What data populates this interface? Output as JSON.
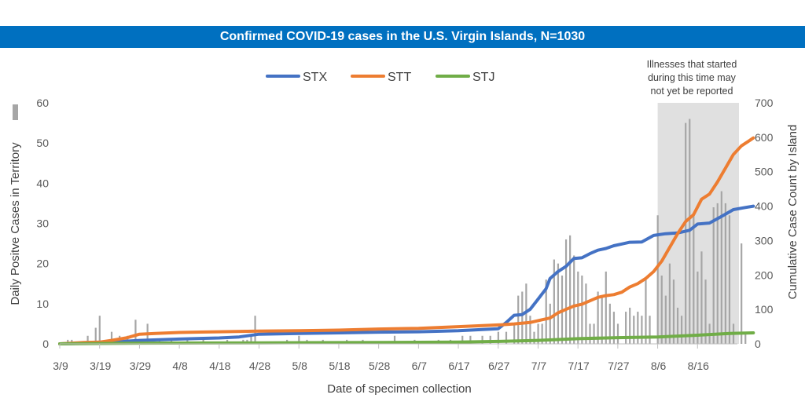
{
  "chart_data": {
    "type": "bar+line",
    "title": "Confirmed COVID-19 cases in the U.S. Virgin Islands, N=1030",
    "xlabel": "Date of specimen collection",
    "ylabel_left": "Daily Positve Cases in Territory",
    "ylabel_right": "Cumulative Case Count by Island",
    "ylim_left": [
      0,
      60
    ],
    "ylim_right": [
      0,
      700
    ],
    "yticks_left": [
      "0",
      "10",
      "20",
      "30",
      "40",
      "50",
      "60"
    ],
    "yticks_right": [
      "0",
      "100",
      "200",
      "300",
      "400",
      "500",
      "600",
      "700"
    ],
    "x_start": "3/9",
    "x_end": "8/26",
    "xticks": [
      "3/9",
      "3/19",
      "3/29",
      "4/8",
      "4/18",
      "4/28",
      "5/8",
      "5/18",
      "5/28",
      "6/7",
      "6/17",
      "6/27",
      "7/7",
      "7/17",
      "7/27",
      "8/6",
      "8/16"
    ],
    "legend_placement": "top-center",
    "annotation": {
      "lines": [
        "Illnesses that started",
        "during this time may",
        "not yet be reported"
      ],
      "shaded_from": "8/6",
      "shaded_to": "8/26"
    },
    "daily_bar_color": "#a6a6a6",
    "daily_cases": [
      [
        "3/11",
        1
      ],
      [
        "3/12",
        1
      ],
      [
        "3/16",
        2
      ],
      [
        "3/18",
        4
      ],
      [
        "3/19",
        7
      ],
      [
        "3/22",
        3
      ],
      [
        "3/24",
        2
      ],
      [
        "3/26",
        2
      ],
      [
        "3/28",
        6
      ],
      [
        "3/31",
        5
      ],
      [
        "4/3",
        1
      ],
      [
        "4/6",
        1
      ],
      [
        "4/10",
        1
      ],
      [
        "4/14",
        1
      ],
      [
        "4/20",
        1
      ],
      [
        "4/24",
        1
      ],
      [
        "4/25",
        1
      ],
      [
        "4/26",
        2
      ],
      [
        "4/27",
        7
      ],
      [
        "5/5",
        1
      ],
      [
        "5/8",
        2
      ],
      [
        "5/10",
        1
      ],
      [
        "5/14",
        1
      ],
      [
        "5/20",
        1
      ],
      [
        "5/24",
        1
      ],
      [
        "6/1",
        2
      ],
      [
        "6/6",
        1
      ],
      [
        "6/12",
        1
      ],
      [
        "6/15",
        1
      ],
      [
        "6/18",
        2
      ],
      [
        "6/20",
        2
      ],
      [
        "6/23",
        2
      ],
      [
        "6/25",
        2
      ],
      [
        "6/27",
        3
      ],
      [
        "6/29",
        3
      ],
      [
        "7/1",
        5
      ],
      [
        "7/2",
        12
      ],
      [
        "7/3",
        13
      ],
      [
        "7/4",
        15
      ],
      [
        "7/5",
        7
      ],
      [
        "7/6",
        3
      ],
      [
        "7/7",
        5
      ],
      [
        "7/8",
        5
      ],
      [
        "7/9",
        16
      ],
      [
        "7/10",
        10
      ],
      [
        "7/11",
        21
      ],
      [
        "7/12",
        20
      ],
      [
        "7/13",
        17
      ],
      [
        "7/14",
        26
      ],
      [
        "7/15",
        27
      ],
      [
        "7/16",
        22
      ],
      [
        "7/17",
        18
      ],
      [
        "7/18",
        17
      ],
      [
        "7/19",
        15
      ],
      [
        "7/20",
        5
      ],
      [
        "7/21",
        5
      ],
      [
        "7/22",
        13
      ],
      [
        "7/23",
        12
      ],
      [
        "7/24",
        18
      ],
      [
        "7/25",
        10
      ],
      [
        "7/26",
        8
      ],
      [
        "7/27",
        5
      ],
      [
        "7/29",
        8
      ],
      [
        "7/30",
        9
      ],
      [
        "7/31",
        7
      ],
      [
        "8/1",
        8
      ],
      [
        "8/2",
        7
      ],
      [
        "8/3",
        16
      ],
      [
        "8/4",
        7
      ],
      [
        "8/6",
        32
      ],
      [
        "8/7",
        17
      ],
      [
        "8/8",
        12
      ],
      [
        "8/9",
        20
      ],
      [
        "8/10",
        16
      ],
      [
        "8/11",
        9
      ],
      [
        "8/12",
        7
      ],
      [
        "8/13",
        55
      ],
      [
        "8/14",
        56
      ],
      [
        "8/15",
        32
      ],
      [
        "8/16",
        18
      ],
      [
        "8/17",
        23
      ],
      [
        "8/18",
        16
      ],
      [
        "8/19",
        5
      ],
      [
        "8/20",
        34
      ],
      [
        "8/21",
        35
      ],
      [
        "8/22",
        38
      ],
      [
        "8/23",
        35
      ],
      [
        "8/24",
        32
      ],
      [
        "8/25",
        5
      ],
      [
        "8/27",
        25
      ],
      [
        "8/28",
        3
      ]
    ],
    "series": [
      {
        "name": "STX",
        "color": "#4472c4",
        "points": [
          [
            "3/9",
            0
          ],
          [
            "3/19",
            3
          ],
          [
            "3/29",
            10
          ],
          [
            "4/8",
            14
          ],
          [
            "4/18",
            17
          ],
          [
            "4/23",
            20
          ],
          [
            "4/28",
            28
          ],
          [
            "5/8",
            30
          ],
          [
            "5/18",
            32
          ],
          [
            "5/28",
            34
          ],
          [
            "6/7",
            35
          ],
          [
            "6/17",
            38
          ],
          [
            "6/27",
            44
          ],
          [
            "6/29",
            62
          ],
          [
            "7/1",
            83
          ],
          [
            "7/3",
            85
          ],
          [
            "7/5",
            100
          ],
          [
            "7/7",
            130
          ],
          [
            "7/9",
            160
          ],
          [
            "7/10",
            190
          ],
          [
            "7/12",
            210
          ],
          [
            "7/14",
            225
          ],
          [
            "7/16",
            248
          ],
          [
            "7/18",
            250
          ],
          [
            "7/20",
            262
          ],
          [
            "7/22",
            272
          ],
          [
            "7/24",
            277
          ],
          [
            "7/26",
            285
          ],
          [
            "7/28",
            290
          ],
          [
            "7/30",
            295
          ],
          [
            "8/2",
            296
          ],
          [
            "8/5",
            315
          ],
          [
            "8/8",
            320
          ],
          [
            "8/11",
            322
          ],
          [
            "8/14",
            330
          ],
          [
            "8/16",
            348
          ],
          [
            "8/19",
            351
          ],
          [
            "8/22",
            370
          ],
          [
            "8/25",
            390
          ],
          [
            "8/28",
            396
          ],
          [
            "8/30",
            400
          ]
        ]
      },
      {
        "name": "STT",
        "color": "#ed7d31",
        "points": [
          [
            "3/9",
            0
          ],
          [
            "3/15",
            4
          ],
          [
            "3/19",
            5
          ],
          [
            "3/22",
            10
          ],
          [
            "3/26",
            18
          ],
          [
            "3/29",
            28
          ],
          [
            "4/2",
            30
          ],
          [
            "4/8",
            33
          ],
          [
            "4/18",
            35
          ],
          [
            "4/28",
            37
          ],
          [
            "5/8",
            38
          ],
          [
            "5/18",
            40
          ],
          [
            "5/28",
            43
          ],
          [
            "6/7",
            45
          ],
          [
            "6/17",
            50
          ],
          [
            "6/27",
            55
          ],
          [
            "7/1",
            58
          ],
          [
            "7/5",
            62
          ],
          [
            "7/8",
            70
          ],
          [
            "7/10",
            75
          ],
          [
            "7/12",
            90
          ],
          [
            "7/14",
            100
          ],
          [
            "7/16",
            110
          ],
          [
            "7/18",
            115
          ],
          [
            "7/20",
            125
          ],
          [
            "7/22",
            135
          ],
          [
            "7/24",
            140
          ],
          [
            "7/26",
            143
          ],
          [
            "7/28",
            150
          ],
          [
            "7/30",
            165
          ],
          [
            "8/1",
            175
          ],
          [
            "8/3",
            190
          ],
          [
            "8/5",
            210
          ],
          [
            "8/7",
            240
          ],
          [
            "8/9",
            280
          ],
          [
            "8/11",
            320
          ],
          [
            "8/13",
            355
          ],
          [
            "8/15",
            375
          ],
          [
            "8/17",
            420
          ],
          [
            "8/19",
            435
          ],
          [
            "8/21",
            470
          ],
          [
            "8/23",
            510
          ],
          [
            "8/25",
            550
          ],
          [
            "8/27",
            575
          ],
          [
            "8/29",
            590
          ],
          [
            "8/30",
            598
          ]
        ]
      },
      {
        "name": "STJ",
        "color": "#70ad47",
        "points": [
          [
            "3/9",
            0
          ],
          [
            "3/29",
            2
          ],
          [
            "4/28",
            3
          ],
          [
            "5/28",
            4
          ],
          [
            "6/17",
            5
          ],
          [
            "6/27",
            7
          ],
          [
            "7/7",
            10
          ],
          [
            "7/17",
            15
          ],
          [
            "7/27",
            18
          ],
          [
            "8/6",
            20
          ],
          [
            "8/16",
            25
          ],
          [
            "8/24",
            30
          ],
          [
            "8/30",
            32
          ]
        ]
      }
    ]
  }
}
